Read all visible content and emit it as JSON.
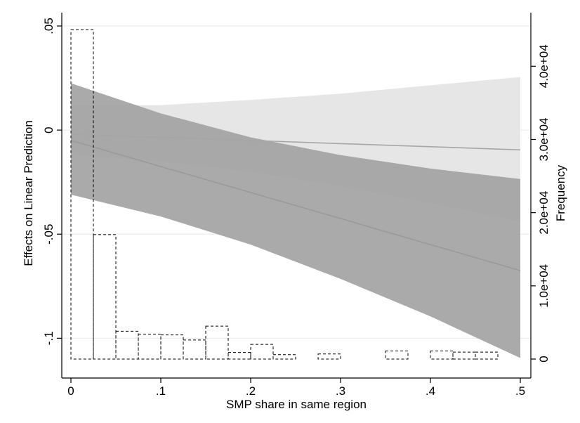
{
  "chart_data": {
    "type": "line",
    "title": "",
    "xlabel": "SMP share in same region",
    "ylabel_left": "Effects on Linear Prediction",
    "ylabel_right": "Frequency",
    "xlim": [
      0,
      0.5
    ],
    "ylim_left": [
      -0.11,
      0.05
    ],
    "ylim_right": [
      0,
      45500
    ],
    "x_ticks": [
      {
        "value": 0,
        "label": "0"
      },
      {
        "value": 0.1,
        "label": ".1"
      },
      {
        "value": 0.2,
        "label": ".2"
      },
      {
        "value": 0.3,
        "label": ".3"
      },
      {
        "value": 0.4,
        "label": ".4"
      },
      {
        "value": 0.5,
        "label": ".5"
      }
    ],
    "y_left_ticks": [
      {
        "value": 0.05,
        "label": ".05"
      },
      {
        "value": 0,
        "label": "0"
      },
      {
        "value": -0.05,
        "label": "-.05"
      },
      {
        "value": -0.1,
        "label": "-.1"
      }
    ],
    "y_right_ticks": [
      {
        "value": 0,
        "label": "0"
      },
      {
        "value": 10000,
        "label": "1.0e+04"
      },
      {
        "value": 20000,
        "label": "2.0e+04"
      },
      {
        "value": 30000,
        "label": "3.0e+04"
      },
      {
        "value": 40000,
        "label": "4.0e+04"
      }
    ],
    "grid": "horizontal",
    "series": [
      {
        "kind": "line_with_ci",
        "color": "#a6a6a6",
        "band_color": "#e6e6e6",
        "x": [
          0,
          0.1,
          0.2,
          0.3,
          0.4,
          0.5
        ],
        "y": [
          -0.002,
          -0.0035,
          -0.005,
          -0.0065,
          -0.008,
          -0.0095
        ],
        "lower": [
          -0.012,
          -0.015,
          -0.02,
          -0.027,
          -0.035,
          -0.044
        ],
        "upper": [
          0.012,
          0.012,
          0.0145,
          0.0175,
          0.0215,
          0.0255
        ]
      },
      {
        "kind": "line_with_ci",
        "color": "#9a9a9a",
        "band_color": "#a3a3a3",
        "x": [
          0,
          0.1,
          0.2,
          0.3,
          0.4,
          0.5
        ],
        "y": [
          -0.005,
          -0.0175,
          -0.03,
          -0.0425,
          -0.055,
          -0.0675
        ],
        "lower": [
          -0.031,
          -0.0415,
          -0.055,
          -0.0715,
          -0.0895,
          -0.1095
        ],
        "upper": [
          0.0225,
          0.008,
          -0.0035,
          -0.012,
          -0.0185,
          -0.0235
        ]
      }
    ],
    "histogram": {
      "bin_width": 0.025,
      "bins": [
        {
          "x0": 0,
          "count": 45000
        },
        {
          "x0": 0.025,
          "count": 17000
        },
        {
          "x0": 0.05,
          "count": 3800
        },
        {
          "x0": 0.075,
          "count": 3400
        },
        {
          "x0": 0.1,
          "count": 3300
        },
        {
          "x0": 0.125,
          "count": 2600
        },
        {
          "x0": 0.15,
          "count": 4500
        },
        {
          "x0": 0.175,
          "count": 900
        },
        {
          "x0": 0.2,
          "count": 2000
        },
        {
          "x0": 0.225,
          "count": 600
        },
        {
          "x0": 0.275,
          "count": 700
        },
        {
          "x0": 0.35,
          "count": 1100
        },
        {
          "x0": 0.4,
          "count": 1100
        },
        {
          "x0": 0.425,
          "count": 950
        },
        {
          "x0": 0.45,
          "count": 950
        }
      ]
    }
  }
}
